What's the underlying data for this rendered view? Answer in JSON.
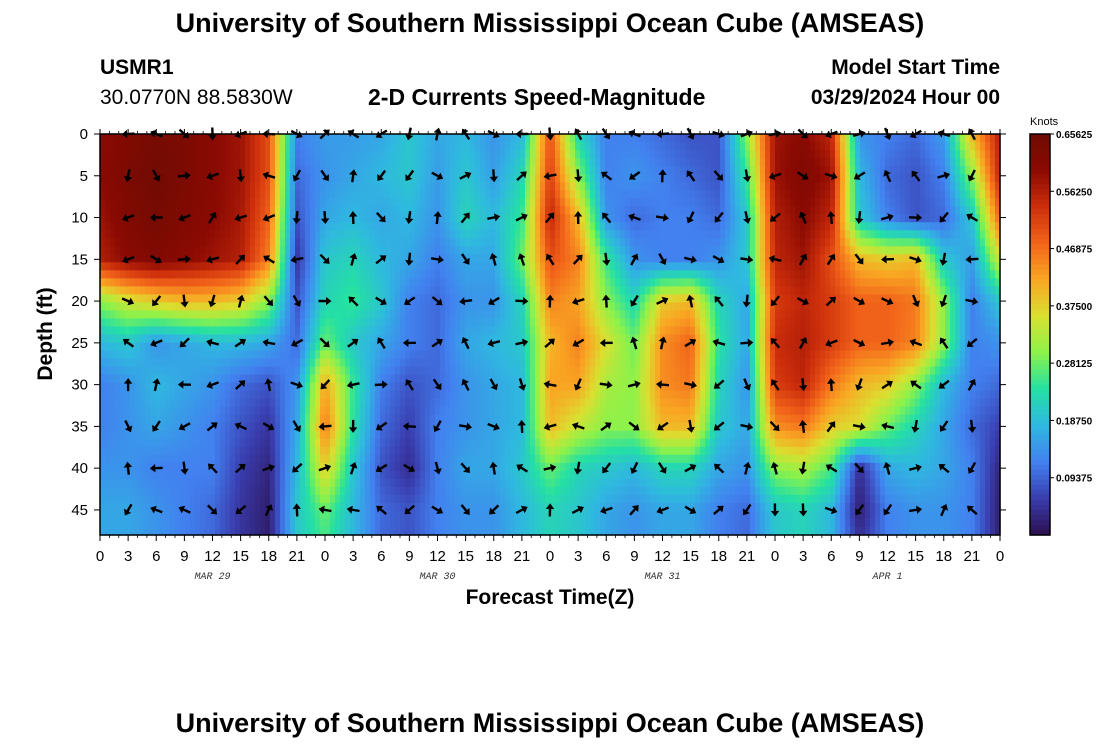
{
  "header": {
    "title": "University of Southern Mississippi Ocean Cube (AMSEAS)",
    "station_id": "USMR1",
    "station_coords": "30.0770N  88.5830W",
    "subtitle": "2-D Currents Speed-Magnitude",
    "model_label": "Model Start Time",
    "model_date": "03/29/2024 Hour 00"
  },
  "footer": {
    "title": "University of Southern Mississippi Ocean Cube (AMSEAS)"
  },
  "chart_data": {
    "type": "heatmap",
    "title": "2-D Currents Speed-Magnitude",
    "xlabel": "Forecast Time(Z)",
    "ylabel": "Depth (ft)",
    "x_ticks": [
      "0",
      "3",
      "6",
      "9",
      "12",
      "15",
      "18",
      "21",
      "0",
      "3",
      "6",
      "9",
      "12",
      "15",
      "18",
      "21",
      "0",
      "3",
      "6",
      "9",
      "12",
      "15",
      "18",
      "21",
      "0",
      "3",
      "6",
      "9",
      "12",
      "15",
      "18",
      "21",
      "0"
    ],
    "x_hours_range": [
      0,
      96
    ],
    "date_labels": [
      {
        "label": "MAR 29",
        "hour": 12
      },
      {
        "label": "MAR 30",
        "hour": 36
      },
      {
        "label": "MAR 31",
        "hour": 60
      },
      {
        "label": "APR 1",
        "hour": 84
      }
    ],
    "y_ticks": [
      0,
      5,
      10,
      15,
      20,
      25,
      30,
      35,
      40,
      45
    ],
    "ylim": [
      0,
      48
    ],
    "colorbar": {
      "title": "Knots",
      "ticks": [
        "0.65625",
        "0.56250",
        "0.46875",
        "0.37500",
        "0.28125",
        "0.18750",
        "0.09375"
      ],
      "range": [
        0,
        0.65625
      ],
      "colormap": [
        "#2b0f4e",
        "#3a3dae",
        "#4280f0",
        "#2fb8e0",
        "#24e0a4",
        "#8cf24a",
        "#d9e030",
        "#f9a623",
        "#f2641a",
        "#cc2e0b",
        "#8b0a03",
        "#6f0b02"
      ]
    },
    "arrow_depths_ft": [
      0,
      5,
      10,
      15,
      20,
      25,
      30,
      35,
      40,
      45
    ],
    "arrow_interval_hours": 3,
    "speed_field": {
      "times_hours": [
        0,
        3,
        6,
        9,
        12,
        15,
        18,
        21,
        24,
        27,
        30,
        33,
        36,
        39,
        42,
        45,
        48,
        51,
        54,
        57,
        60,
        63,
        66,
        69,
        72,
        75,
        78,
        81,
        84,
        87,
        90,
        93,
        96
      ],
      "depths_ft": [
        0,
        5,
        10,
        15,
        20,
        25,
        30,
        35,
        40,
        45,
        48
      ],
      "values_knots": [
        [
          0.6,
          0.62,
          0.64,
          0.63,
          0.6,
          0.58,
          0.5,
          0.12,
          0.15,
          0.15,
          0.16,
          0.2,
          0.16,
          0.18,
          0.14,
          0.18,
          0.5,
          0.22,
          0.12,
          0.12,
          0.1,
          0.08,
          0.08,
          0.3,
          0.58,
          0.6,
          0.55,
          0.14,
          0.12,
          0.1,
          0.15,
          0.4,
          0.56
        ],
        [
          0.6,
          0.63,
          0.65,
          0.63,
          0.6,
          0.58,
          0.5,
          0.1,
          0.14,
          0.16,
          0.18,
          0.2,
          0.15,
          0.2,
          0.15,
          0.22,
          0.52,
          0.3,
          0.12,
          0.14,
          0.12,
          0.1,
          0.08,
          0.25,
          0.58,
          0.62,
          0.58,
          0.18,
          0.1,
          0.08,
          0.12,
          0.3,
          0.55
        ],
        [
          0.58,
          0.62,
          0.64,
          0.62,
          0.6,
          0.57,
          0.48,
          0.08,
          0.16,
          0.18,
          0.16,
          0.18,
          0.14,
          0.22,
          0.18,
          0.25,
          0.55,
          0.4,
          0.14,
          0.1,
          0.12,
          0.12,
          0.1,
          0.2,
          0.56,
          0.6,
          0.55,
          0.2,
          0.12,
          0.08,
          0.1,
          0.2,
          0.48
        ],
        [
          0.56,
          0.6,
          0.62,
          0.6,
          0.58,
          0.56,
          0.45,
          0.05,
          0.2,
          0.22,
          0.18,
          0.16,
          0.12,
          0.16,
          0.16,
          0.28,
          0.5,
          0.45,
          0.25,
          0.14,
          0.12,
          0.12,
          0.14,
          0.2,
          0.55,
          0.58,
          0.5,
          0.4,
          0.38,
          0.4,
          0.2,
          0.15,
          0.35
        ],
        [
          0.3,
          0.35,
          0.38,
          0.4,
          0.4,
          0.38,
          0.3,
          0.08,
          0.22,
          0.25,
          0.2,
          0.12,
          0.1,
          0.14,
          0.14,
          0.22,
          0.45,
          0.42,
          0.3,
          0.22,
          0.38,
          0.4,
          0.22,
          0.16,
          0.52,
          0.55,
          0.52,
          0.48,
          0.48,
          0.46,
          0.3,
          0.12,
          0.2
        ],
        [
          0.18,
          0.2,
          0.14,
          0.16,
          0.18,
          0.18,
          0.16,
          0.1,
          0.28,
          0.2,
          0.16,
          0.12,
          0.1,
          0.16,
          0.18,
          0.2,
          0.4,
          0.45,
          0.36,
          0.28,
          0.44,
          0.48,
          0.24,
          0.16,
          0.54,
          0.56,
          0.52,
          0.48,
          0.48,
          0.45,
          0.3,
          0.12,
          0.14
        ],
        [
          0.12,
          0.14,
          0.18,
          0.16,
          0.14,
          0.1,
          0.08,
          0.14,
          0.42,
          0.25,
          0.12,
          0.08,
          0.1,
          0.14,
          0.16,
          0.18,
          0.42,
          0.42,
          0.32,
          0.3,
          0.44,
          0.46,
          0.22,
          0.14,
          0.52,
          0.55,
          0.46,
          0.4,
          0.38,
          0.3,
          0.18,
          0.12,
          0.1
        ],
        [
          0.12,
          0.14,
          0.16,
          0.14,
          0.12,
          0.08,
          0.05,
          0.16,
          0.46,
          0.24,
          0.1,
          0.06,
          0.12,
          0.14,
          0.16,
          0.18,
          0.4,
          0.34,
          0.3,
          0.3,
          0.4,
          0.4,
          0.2,
          0.16,
          0.44,
          0.46,
          0.38,
          0.36,
          0.28,
          0.22,
          0.16,
          0.1,
          0.06
        ],
        [
          0.14,
          0.14,
          0.12,
          0.12,
          0.12,
          0.06,
          0.03,
          0.18,
          0.38,
          0.2,
          0.08,
          0.04,
          0.12,
          0.16,
          0.16,
          0.2,
          0.28,
          0.22,
          0.2,
          0.18,
          0.22,
          0.22,
          0.16,
          0.14,
          0.3,
          0.32,
          0.26,
          0.04,
          0.16,
          0.18,
          0.16,
          0.12,
          0.03
        ],
        [
          0.16,
          0.16,
          0.14,
          0.12,
          0.1,
          0.05,
          0.02,
          0.2,
          0.28,
          0.18,
          0.1,
          0.08,
          0.12,
          0.14,
          0.14,
          0.18,
          0.22,
          0.2,
          0.16,
          0.14,
          0.16,
          0.16,
          0.12,
          0.1,
          0.2,
          0.22,
          0.18,
          0.02,
          0.12,
          0.14,
          0.14,
          0.12,
          0.02
        ],
        [
          0.16,
          0.16,
          0.14,
          0.12,
          0.1,
          0.05,
          0.02,
          0.2,
          0.26,
          0.18,
          0.1,
          0.08,
          0.12,
          0.14,
          0.14,
          0.18,
          0.22,
          0.2,
          0.16,
          0.14,
          0.16,
          0.16,
          0.12,
          0.1,
          0.2,
          0.22,
          0.18,
          0.04,
          0.12,
          0.14,
          0.14,
          0.12,
          0.02
        ]
      ]
    }
  }
}
